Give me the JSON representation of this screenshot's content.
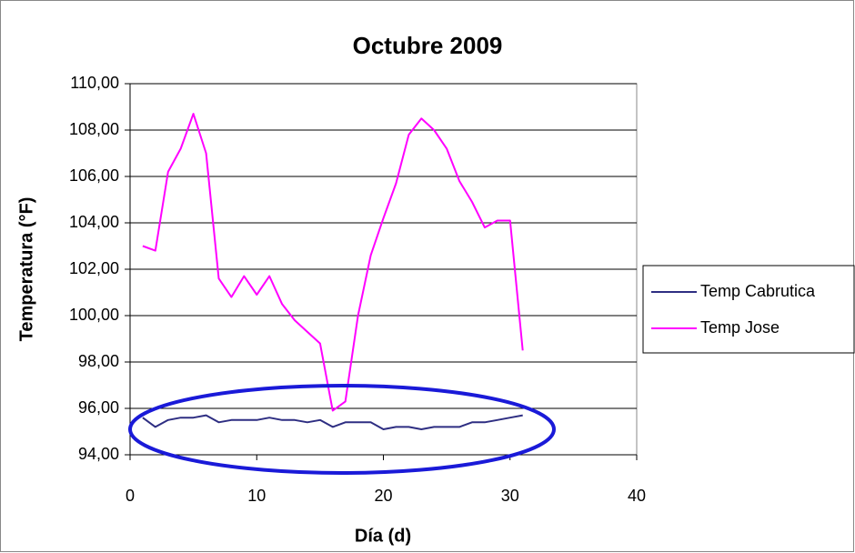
{
  "chart_data": {
    "type": "line",
    "title": "Octubre 2009",
    "x_label": "Día (d)",
    "y_label": "Temperatura (°F)",
    "x": [
      1,
      2,
      3,
      4,
      5,
      6,
      7,
      8,
      9,
      10,
      11,
      12,
      13,
      14,
      15,
      16,
      17,
      18,
      19,
      20,
      21,
      22,
      23,
      24,
      25,
      26,
      27,
      28,
      29,
      30,
      31
    ],
    "series": [
      {
        "name": "Temp Cabrutica",
        "color": "#2e2e82",
        "values": [
          95.6,
          95.2,
          95.5,
          95.6,
          95.6,
          95.7,
          95.4,
          95.5,
          95.5,
          95.5,
          95.6,
          95.5,
          95.5,
          95.4,
          95.5,
          95.2,
          95.4,
          95.4,
          95.4,
          95.1,
          95.2,
          95.2,
          95.1,
          95.2,
          95.2,
          95.2,
          95.4,
          95.4,
          95.5,
          95.6,
          95.7
        ]
      },
      {
        "name": "Temp Jose",
        "color": "#ff00ff",
        "values": [
          103.0,
          102.8,
          106.2,
          107.2,
          108.7,
          107.0,
          101.6,
          100.8,
          101.7,
          100.9,
          101.7,
          100.5,
          99.8,
          99.3,
          98.8,
          95.9,
          96.3,
          100.0,
          102.6,
          104.2,
          105.7,
          107.8,
          108.5,
          108.0,
          107.2,
          105.8,
          104.9,
          103.8,
          104.1,
          104.1,
          98.5
        ]
      }
    ],
    "xlim": [
      0,
      40
    ],
    "xticks": [
      0,
      10,
      20,
      30,
      40
    ],
    "ylim": [
      94,
      110
    ],
    "yticks": [
      {
        "value": 94,
        "label": "94,00"
      },
      {
        "value": 96,
        "label": "96,00"
      },
      {
        "value": 98,
        "label": "98,00"
      },
      {
        "value": 100,
        "label": "100,00"
      },
      {
        "value": 102,
        "label": "102,00"
      },
      {
        "value": 104,
        "label": "104,00"
      },
      {
        "value": 106,
        "label": "106,00"
      },
      {
        "value": 108,
        "label": "108,00"
      },
      {
        "value": 110,
        "label": "110,00"
      }
    ],
    "grid": true,
    "legend": "right"
  }
}
